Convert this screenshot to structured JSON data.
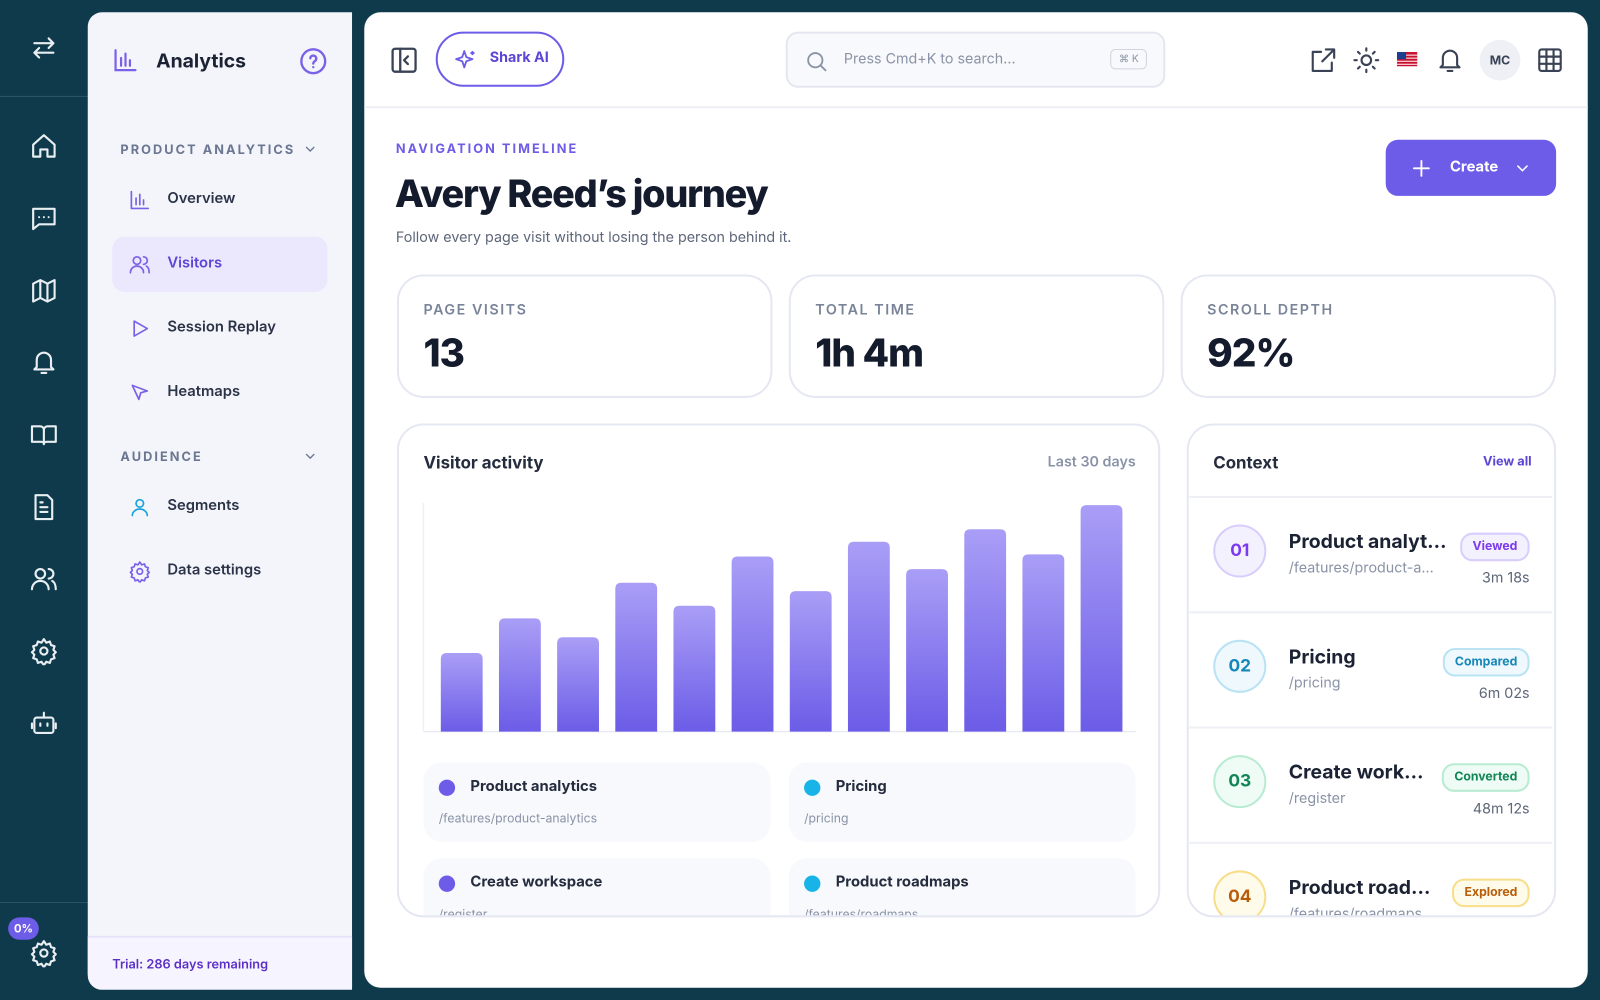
{
  "sidebar": {
    "brand": "Analytics",
    "sections": [
      {
        "title": "PRODUCT ANALYTICS",
        "items": [
          "Overview",
          "Visitors",
          "Session Replay",
          "Heatmaps"
        ]
      },
      {
        "title": "AUDIENCE",
        "items": [
          "Segments",
          "Data settings"
        ]
      }
    ],
    "trial": "Trial: 286 days remaining"
  },
  "rail": {
    "badge": "0%"
  },
  "topbar": {
    "ai_button": "Shark AI",
    "search_placeholder": "Press Cmd+K to search...",
    "shortcut": "⌘ K",
    "avatar": "MC"
  },
  "header": {
    "eyebrow": "NAVIGATION TIMELINE",
    "title": "Avery Reed’s journey",
    "subtitle": "Follow every page visit without losing the person behind it.",
    "create": "Create"
  },
  "stats": [
    {
      "label": "PAGE VISITS",
      "value": "13"
    },
    {
      "label": "TOTAL TIME",
      "value": "1h 4m"
    },
    {
      "label": "SCROLL DEPTH",
      "value": "92%"
    }
  ],
  "chart_data": {
    "type": "bar",
    "title": "Visitor activity",
    "range_label": "Last 30 days",
    "values": [
      75,
      108,
      90,
      142,
      120,
      167,
      134,
      181,
      155,
      193,
      169,
      216
    ],
    "color": "#6c5ce7",
    "top_color": "#a99ef6"
  },
  "legend": [
    {
      "name": "Product analytics",
      "path": "/features/product-analytics"
    },
    {
      "name": "Pricing",
      "path": "/pricing"
    },
    {
      "name": "Create workspace",
      "path": "/register"
    },
    {
      "name": "Product roadmaps",
      "path": "/features/roadmaps"
    }
  ],
  "context": {
    "title": "Context",
    "view_all": "View all",
    "items": [
      {
        "index": "01",
        "title": "Product analyt…",
        "path": "/features/product-a…",
        "tag": "Viewed",
        "duration": "3m 18s"
      },
      {
        "index": "02",
        "title": "Pricing",
        "path": "/pricing",
        "tag": "Compared",
        "duration": "6m 02s"
      },
      {
        "index": "03",
        "title": "Create work…",
        "path": "/register",
        "tag": "Converted",
        "duration": "48m 12s"
      },
      {
        "index": "04",
        "title": "Product road…",
        "path": "/features/roadmaps",
        "tag": "Explored",
        "duration": ""
      }
    ]
  }
}
